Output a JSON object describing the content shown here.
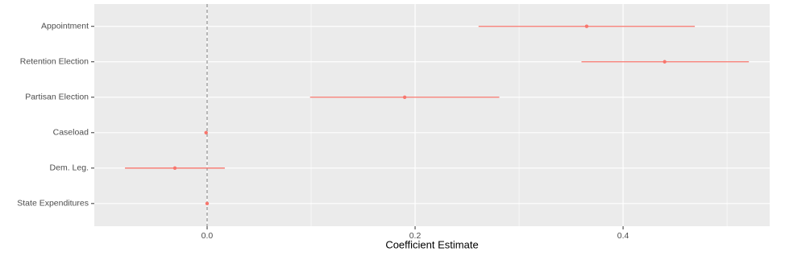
{
  "chart_data": {
    "type": "coefplot",
    "x_label": "Coefficient Estimate",
    "categories": [
      "Appointment",
      "Retention Election",
      "Partisan Election",
      "Caseload",
      "Dem. Leg.",
      "State Expenditures"
    ],
    "values": [
      0.365,
      0.44,
      0.19,
      -0.001,
      -0.031,
      0.0
    ],
    "lower": [
      0.261,
      0.36,
      0.099,
      -0.002,
      -0.079,
      -0.001
    ],
    "upper": [
      0.469,
      0.521,
      0.281,
      0.0,
      0.017,
      0.001
    ],
    "color": "#f8766d",
    "xlim": [
      -0.1085,
      0.541
    ],
    "xticks": [
      {
        "value": 0,
        "label": "0.0"
      },
      0.2,
      0.4
    ],
    "vline": 0,
    "grid": true
  }
}
